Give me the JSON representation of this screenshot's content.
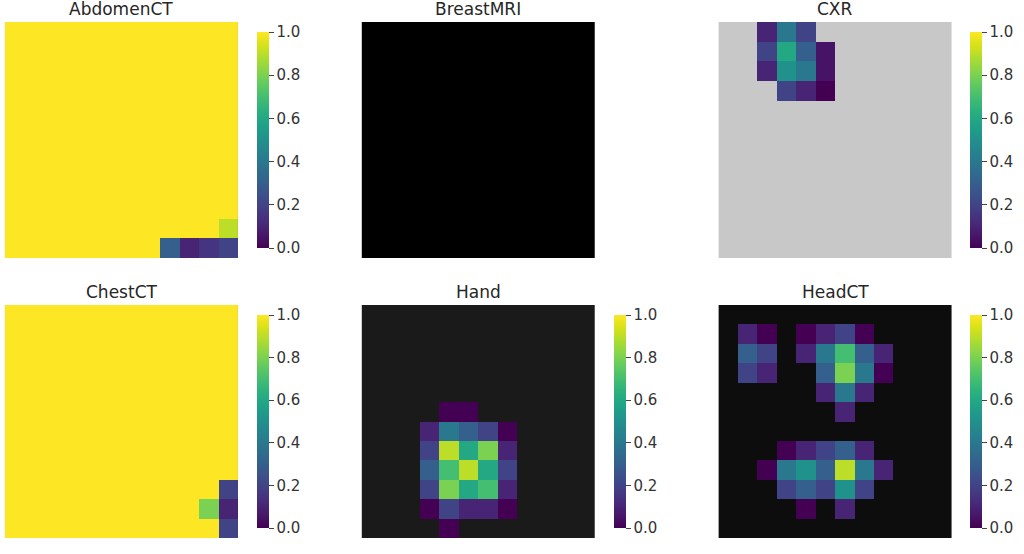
{
  "chart_data": [
    {
      "type": "heatmap",
      "title": "AbdomenCT",
      "tick_labels": false,
      "colorbar_range": [
        0,
        1
      ],
      "colorbar_ticks": [
        {
          "value": 0,
          "label": "0.0"
        },
        {
          "value": 0.2,
          "label": "0.2"
        },
        {
          "value": 0.4,
          "label": "0.4"
        },
        {
          "value": 0.6,
          "label": "0.6"
        },
        {
          "value": 0.8,
          "label": "0.8"
        },
        {
          "value": 1,
          "label": "1.0"
        }
      ],
      "cells": [
        [
          1,
          1,
          1,
          1,
          1,
          1,
          1,
          1,
          1,
          1,
          1,
          1
        ],
        [
          1,
          1,
          1,
          1,
          1,
          1,
          1,
          1,
          1,
          1,
          1,
          1
        ],
        [
          1,
          1,
          1,
          1,
          1,
          1,
          1,
          1,
          1,
          1,
          1,
          1
        ],
        [
          1,
          1,
          1,
          1,
          1,
          1,
          1,
          1,
          1,
          1,
          1,
          1
        ],
        [
          1,
          1,
          1,
          1,
          1,
          1,
          1,
          1,
          1,
          1,
          1,
          1
        ],
        [
          1,
          1,
          1,
          1,
          1,
          1,
          1,
          1,
          1,
          1,
          1,
          1
        ],
        [
          1,
          1,
          1,
          1,
          1,
          1,
          1,
          1,
          1,
          1,
          1,
          1
        ],
        [
          1,
          1,
          1,
          1,
          1,
          1,
          1,
          1,
          1,
          1,
          1,
          1
        ],
        [
          1,
          1,
          1,
          1,
          1,
          1,
          1,
          1,
          1,
          1,
          1,
          1
        ],
        [
          1,
          1,
          1,
          1,
          1,
          1,
          1,
          1,
          1,
          1,
          1,
          1
        ],
        [
          1,
          1,
          1,
          1,
          1,
          1,
          1,
          1,
          1,
          1,
          1,
          0.9
        ],
        [
          1,
          1,
          1,
          1,
          1,
          1,
          1,
          1,
          0.3,
          0.1,
          0.15,
          0.2
        ]
      ]
    },
    {
      "type": "heatmap",
      "title": "BreastMRI",
      "tick_labels": false,
      "colorbar_range": [
        0,
        1
      ],
      "colorbar_ticks": [
        {
          "value": 0,
          "label": "0.0"
        },
        {
          "value": 0.2,
          "label": "0.2"
        },
        {
          "value": 0.4,
          "label": "0.4"
        },
        {
          "value": 0.6,
          "label": "0.6"
        },
        {
          "value": 0.8,
          "label": "0.8"
        },
        {
          "value": 1,
          "label": "1.0"
        }
      ],
      "cells": [
        [
          null,
          null,
          null,
          null,
          null,
          null,
          null,
          null,
          null,
          null,
          null,
          null
        ],
        [
          null,
          null,
          null,
          null,
          null,
          null,
          null,
          null,
          null,
          null,
          null,
          null
        ],
        [
          null,
          null,
          null,
          null,
          null,
          null,
          null,
          null,
          null,
          null,
          null,
          null
        ],
        [
          null,
          null,
          null,
          null,
          null,
          null,
          null,
          null,
          null,
          null,
          null,
          null
        ],
        [
          null,
          null,
          null,
          null,
          null,
          null,
          null,
          null,
          null,
          null,
          null,
          null
        ],
        [
          null,
          null,
          null,
          null,
          null,
          null,
          null,
          null,
          null,
          null,
          null,
          null
        ],
        [
          null,
          null,
          null,
          null,
          null,
          null,
          null,
          null,
          null,
          null,
          null,
          null
        ],
        [
          null,
          null,
          null,
          null,
          null,
          null,
          null,
          null,
          null,
          null,
          null,
          null
        ],
        [
          null,
          null,
          null,
          null,
          null,
          null,
          null,
          null,
          null,
          null,
          null,
          null
        ],
        [
          null,
          null,
          null,
          null,
          null,
          null,
          null,
          null,
          null,
          null,
          null,
          null
        ],
        [
          null,
          null,
          null,
          null,
          null,
          null,
          null,
          null,
          null,
          null,
          null,
          null
        ],
        [
          null,
          null,
          null,
          null,
          null,
          null,
          null,
          null,
          null,
          null,
          null,
          null
        ]
      ]
    },
    {
      "type": "heatmap",
      "title": "CXR",
      "tick_labels": false,
      "colorbar_range": [
        0,
        1
      ],
      "colorbar_ticks": [
        {
          "value": 0,
          "label": "0.0"
        },
        {
          "value": 0.2,
          "label": "0.2"
        },
        {
          "value": 0.4,
          "label": "0.4"
        },
        {
          "value": 0.6,
          "label": "0.6"
        },
        {
          "value": 0.8,
          "label": "0.8"
        },
        {
          "value": 1,
          "label": "1.0"
        }
      ],
      "cells": [
        [
          null,
          null,
          0.1,
          0.4,
          0.2,
          null,
          null,
          null,
          null,
          null,
          null,
          null
        ],
        [
          null,
          null,
          0.2,
          0.6,
          0.3,
          0.05,
          null,
          null,
          null,
          null,
          null,
          null
        ],
        [
          null,
          null,
          0.1,
          0.5,
          0.4,
          0.05,
          null,
          null,
          null,
          null,
          null,
          null
        ],
        [
          null,
          null,
          null,
          0.2,
          0.1,
          0.0,
          null,
          null,
          null,
          null,
          null,
          null
        ],
        [
          null,
          null,
          null,
          null,
          null,
          null,
          null,
          null,
          null,
          null,
          null,
          null
        ],
        [
          null,
          null,
          null,
          null,
          null,
          null,
          null,
          null,
          null,
          null,
          null,
          null
        ],
        [
          null,
          null,
          null,
          null,
          null,
          null,
          null,
          null,
          null,
          null,
          null,
          null
        ],
        [
          null,
          null,
          null,
          null,
          null,
          null,
          null,
          null,
          null,
          null,
          null,
          null
        ],
        [
          null,
          null,
          null,
          null,
          null,
          null,
          null,
          null,
          null,
          null,
          null,
          null
        ],
        [
          null,
          null,
          null,
          null,
          null,
          null,
          null,
          null,
          null,
          null,
          null,
          null
        ],
        [
          null,
          null,
          null,
          null,
          null,
          null,
          null,
          null,
          null,
          null,
          null,
          null
        ],
        [
          null,
          null,
          null,
          null,
          null,
          null,
          null,
          null,
          null,
          null,
          null,
          null
        ]
      ]
    },
    {
      "type": "heatmap",
      "title": "ChestCT",
      "tick_labels": false,
      "colorbar_range": [
        0,
        1
      ],
      "colorbar_ticks": [
        {
          "value": 0,
          "label": "0.0"
        },
        {
          "value": 0.2,
          "label": "0.2"
        },
        {
          "value": 0.4,
          "label": "0.4"
        },
        {
          "value": 0.6,
          "label": "0.6"
        },
        {
          "value": 0.8,
          "label": "0.8"
        },
        {
          "value": 1,
          "label": "1.0"
        }
      ],
      "cells": [
        [
          1,
          1,
          1,
          1,
          1,
          1,
          1,
          1,
          1,
          1,
          1,
          1
        ],
        [
          1,
          1,
          1,
          1,
          1,
          1,
          1,
          1,
          1,
          1,
          1,
          1
        ],
        [
          1,
          1,
          1,
          1,
          1,
          1,
          1,
          1,
          1,
          1,
          1,
          1
        ],
        [
          1,
          1,
          1,
          1,
          1,
          1,
          1,
          1,
          1,
          1,
          1,
          1
        ],
        [
          1,
          1,
          1,
          1,
          1,
          1,
          1,
          1,
          1,
          1,
          1,
          1
        ],
        [
          1,
          1,
          1,
          1,
          1,
          1,
          1,
          1,
          1,
          1,
          1,
          1
        ],
        [
          1,
          1,
          1,
          1,
          1,
          1,
          1,
          1,
          1,
          1,
          1,
          1
        ],
        [
          1,
          1,
          1,
          1,
          1,
          1,
          1,
          1,
          1,
          1,
          1,
          1
        ],
        [
          1,
          1,
          1,
          1,
          1,
          1,
          1,
          1,
          1,
          1,
          1,
          1
        ],
        [
          1,
          1,
          1,
          1,
          1,
          1,
          1,
          1,
          1,
          1,
          1,
          0.2
        ],
        [
          1,
          1,
          1,
          1,
          1,
          1,
          1,
          1,
          1,
          1,
          0.8,
          0.1
        ],
        [
          1,
          1,
          1,
          1,
          1,
          1,
          1,
          1,
          1,
          1,
          1,
          0.2
        ]
      ]
    },
    {
      "type": "heatmap",
      "title": "Hand",
      "tick_labels": false,
      "colorbar_range": [
        0,
        1
      ],
      "colorbar_ticks": [
        {
          "value": 0,
          "label": "0.0"
        },
        {
          "value": 0.2,
          "label": "0.2"
        },
        {
          "value": 0.4,
          "label": "0.4"
        },
        {
          "value": 0.6,
          "label": "0.6"
        },
        {
          "value": 0.8,
          "label": "0.8"
        },
        {
          "value": 1,
          "label": "1.0"
        }
      ],
      "cells": [
        [
          null,
          null,
          null,
          null,
          null,
          null,
          null,
          null,
          null,
          null,
          null,
          null
        ],
        [
          null,
          null,
          null,
          null,
          null,
          null,
          null,
          null,
          null,
          null,
          null,
          null
        ],
        [
          null,
          null,
          null,
          null,
          null,
          null,
          null,
          null,
          null,
          null,
          null,
          null
        ],
        [
          null,
          null,
          null,
          null,
          null,
          null,
          null,
          null,
          null,
          null,
          null,
          null
        ],
        [
          null,
          null,
          null,
          null,
          null,
          null,
          null,
          null,
          null,
          null,
          null,
          null
        ],
        [
          null,
          null,
          null,
          null,
          0.0,
          0.0,
          null,
          null,
          null,
          null,
          null,
          null
        ],
        [
          null,
          null,
          null,
          0.1,
          0.4,
          0.3,
          0.2,
          0.0,
          null,
          null,
          null,
          null
        ],
        [
          null,
          null,
          null,
          0.2,
          0.9,
          0.6,
          0.8,
          0.1,
          null,
          null,
          null,
          null
        ],
        [
          null,
          null,
          null,
          0.3,
          0.7,
          0.9,
          0.6,
          0.2,
          null,
          null,
          null,
          null
        ],
        [
          null,
          null,
          null,
          0.2,
          0.8,
          0.6,
          0.7,
          0.1,
          null,
          null,
          null,
          null
        ],
        [
          null,
          null,
          null,
          0.0,
          0.2,
          0.1,
          0.1,
          0.0,
          null,
          null,
          null,
          null
        ],
        [
          null,
          null,
          null,
          null,
          0.0,
          null,
          null,
          null,
          null,
          null,
          null,
          null
        ]
      ]
    },
    {
      "type": "heatmap",
      "title": "HeadCT",
      "tick_labels": false,
      "colorbar_range": [
        0,
        1
      ],
      "colorbar_ticks": [
        {
          "value": 0,
          "label": "0.0"
        },
        {
          "value": 0.2,
          "label": "0.2"
        },
        {
          "value": 0.4,
          "label": "0.4"
        },
        {
          "value": 0.6,
          "label": "0.6"
        },
        {
          "value": 0.8,
          "label": "0.8"
        },
        {
          "value": 1,
          "label": "1.0"
        }
      ],
      "cells": [
        [
          null,
          null,
          null,
          null,
          null,
          null,
          null,
          null,
          null,
          null,
          null,
          null
        ],
        [
          null,
          0.1,
          0.0,
          null,
          0.0,
          0.1,
          0.2,
          0.0,
          null,
          null,
          null,
          null
        ],
        [
          null,
          0.3,
          0.2,
          null,
          0.1,
          0.4,
          0.7,
          0.3,
          0.1,
          null,
          null,
          null
        ],
        [
          null,
          0.2,
          0.1,
          null,
          null,
          0.3,
          0.8,
          0.4,
          0.0,
          null,
          null,
          null
        ],
        [
          null,
          null,
          null,
          null,
          null,
          0.1,
          0.4,
          0.1,
          null,
          null,
          null,
          null
        ],
        [
          null,
          null,
          null,
          null,
          null,
          null,
          0.1,
          null,
          null,
          null,
          null,
          null
        ],
        [
          null,
          null,
          null,
          null,
          null,
          null,
          null,
          null,
          null,
          null,
          null,
          null
        ],
        [
          null,
          null,
          null,
          0.0,
          0.1,
          0.2,
          0.3,
          0.1,
          null,
          null,
          null,
          null
        ],
        [
          null,
          null,
          0.0,
          0.4,
          0.5,
          0.3,
          0.9,
          0.4,
          0.1,
          null,
          null,
          null
        ],
        [
          null,
          null,
          null,
          0.2,
          0.3,
          0.2,
          0.5,
          0.2,
          null,
          null,
          null,
          null
        ],
        [
          null,
          null,
          null,
          null,
          0.0,
          null,
          0.1,
          null,
          null,
          null,
          null,
          null
        ],
        [
          null,
          null,
          null,
          null,
          null,
          null,
          null,
          null,
          null,
          null,
          null,
          null
        ]
      ]
    }
  ]
}
